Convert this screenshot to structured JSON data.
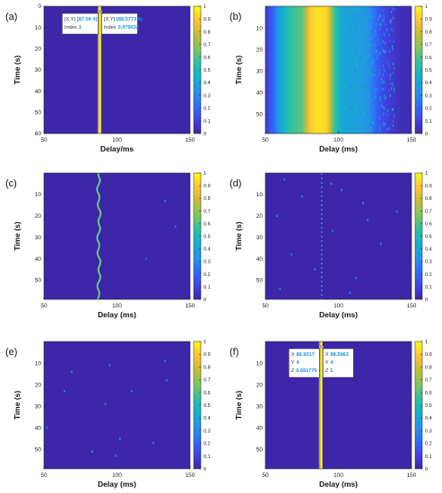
{
  "colormap": [
    "#3e26a8",
    "#4145e4",
    "#2d6ff8",
    "#2595e4",
    "#12b2cf",
    "#32c19f",
    "#7fc75e",
    "#c8bd36",
    "#fcc339",
    "#f9fa14"
  ],
  "colorbar": {
    "ticks": [
      "0",
      "0.1",
      "0.2",
      "0.3",
      "0.4",
      "0.5",
      "0.6",
      "0.7",
      "0.8",
      "0.9",
      "1"
    ]
  },
  "chart_data": [
    {
      "panel": "(a)",
      "type": "heatmap",
      "colormap": "parula",
      "xlabel": "Delay/ms",
      "ylabel": "Time (s)",
      "xlim": [
        50,
        150
      ],
      "ylim": [
        0,
        60
      ],
      "y_reversed": true,
      "xticks": [
        50,
        100,
        150
      ],
      "yticks": [
        0,
        10,
        20,
        30,
        40,
        50,
        60
      ],
      "ridge": {
        "x": 88.3,
        "value": 1
      },
      "datatips": [
        {
          "lines": [
            {
              "label": "[X,Y]",
              "value": "[87.09 4]"
            },
            {
              "label": "Index",
              "value": "1"
            }
          ]
        },
        {
          "lines": [
            {
              "label": "[X,Y]",
              "value": "[88.5773 4]"
            },
            {
              "label": "Index",
              "value": "0.975632"
            }
          ]
        }
      ],
      "speckles": []
    },
    {
      "panel": "(b)",
      "type": "heatmap",
      "colormap": "parula",
      "xlabel": "Delay (ms)",
      "ylabel": "Time (s)",
      "xlim": [
        50,
        150
      ],
      "ylim": [
        0,
        59
      ],
      "y_reversed": true,
      "xticks": [
        50,
        100,
        150
      ],
      "yticks": [
        10,
        20,
        30,
        40,
        50
      ],
      "profile": {
        "x": [
          50,
          55,
          60,
          65,
          70,
          75,
          80,
          85,
          88,
          92,
          96,
          100,
          105,
          110,
          115,
          120,
          125,
          130,
          140,
          150
        ],
        "values": [
          0.08,
          0.2,
          0.4,
          0.52,
          0.58,
          0.62,
          0.9,
          0.95,
          0.95,
          0.92,
          0.6,
          0.45,
          0.38,
          0.38,
          0.37,
          0.32,
          0.2,
          0.12,
          0.04,
          0.02
        ]
      },
      "datatips": [],
      "speckles": []
    },
    {
      "panel": "(c)",
      "type": "heatmap",
      "colormap": "parula",
      "xlabel": "Delay (ms)",
      "ylabel": "Time (s)",
      "xlim": [
        50,
        150
      ],
      "ylim": [
        0,
        59
      ],
      "y_reversed": true,
      "xticks": [
        50,
        100,
        150
      ],
      "yticks": [
        10,
        20,
        30,
        40,
        50
      ],
      "ridge": {
        "x": 87.6,
        "value": 0.45,
        "wavy": true
      },
      "datatips": [],
      "speckles": [
        [
          133,
          13,
          0.3
        ],
        [
          140,
          25,
          0.25
        ],
        [
          120,
          40,
          0.2
        ]
      ]
    },
    {
      "panel": "(d)",
      "type": "heatmap",
      "colormap": "parula",
      "xlabel": "Delay (ms)",
      "ylabel": "Time (s)",
      "xlim": [
        50,
        150
      ],
      "ylim": [
        0,
        59
      ],
      "y_reversed": true,
      "xticks": [
        50,
        100,
        150
      ],
      "yticks": [
        10,
        20,
        30,
        40,
        50
      ],
      "ridge": {
        "x": 88.5,
        "value": 0.3,
        "dashed": true
      },
      "datatips": [],
      "speckles": [
        [
          63,
          3,
          0.3
        ],
        [
          95,
          5,
          0.35
        ],
        [
          102,
          8,
          0.3
        ],
        [
          75,
          11,
          0.3
        ],
        [
          117,
          14,
          0.3
        ],
        [
          58,
          20,
          0.3
        ],
        [
          96,
          27,
          0.3
        ],
        [
          129,
          33,
          0.3
        ],
        [
          68,
          38,
          0.3
        ],
        [
          84,
          45,
          0.3
        ],
        [
          112,
          49,
          0.3
        ],
        [
          60,
          54,
          0.3
        ],
        [
          108,
          56,
          0.3
        ],
        [
          120,
          22,
          0.3
        ],
        [
          140,
          18,
          0.3
        ]
      ]
    },
    {
      "panel": "(e)",
      "type": "heatmap",
      "colormap": "parula",
      "xlabel": "Delay (ms)",
      "ylabel": "Time (s)",
      "xlim": [
        50,
        150
      ],
      "ylim": [
        0,
        59
      ],
      "y_reversed": true,
      "xticks": [
        50,
        100,
        150
      ],
      "yticks": [
        10,
        20,
        30,
        40,
        50
      ],
      "datatips": [],
      "speckles": [
        [
          69,
          14,
          0.35
        ],
        [
          95,
          11,
          0.3
        ],
        [
          64,
          23,
          0.3
        ],
        [
          92,
          29,
          0.35
        ],
        [
          110,
          23,
          0.3
        ],
        [
          133,
          9,
          0.3
        ],
        [
          134,
          18,
          0.3
        ],
        [
          52,
          40,
          0.3
        ],
        [
          102,
          45,
          0.3
        ],
        [
          83,
          51,
          0.35
        ],
        [
          99,
          53,
          0.3
        ],
        [
          125,
          47,
          0.3
        ]
      ]
    },
    {
      "panel": "(f)",
      "type": "heatmap",
      "colormap": "parula",
      "xlabel": "Delay (ms)",
      "ylabel": "Time (s)",
      "xlim": [
        50,
        150
      ],
      "ylim": [
        0,
        59
      ],
      "y_reversed": true,
      "xticks": [
        50,
        100,
        150
      ],
      "yticks": [
        10,
        20,
        30,
        40,
        50
      ],
      "ridge": {
        "x": 88.2,
        "value": 1
      },
      "datatips": [
        {
          "lines": [
            {
              "label": "X",
              "value": "86.9217"
            },
            {
              "label": "Y",
              "value": "4"
            },
            {
              "label": "Z",
              "value": "0.691775"
            }
          ]
        },
        {
          "lines": [
            {
              "label": "X",
              "value": "88.5963"
            },
            {
              "label": "Y",
              "value": "4"
            },
            {
              "label": "Z",
              "value": "1"
            }
          ]
        }
      ],
      "speckles": []
    }
  ]
}
